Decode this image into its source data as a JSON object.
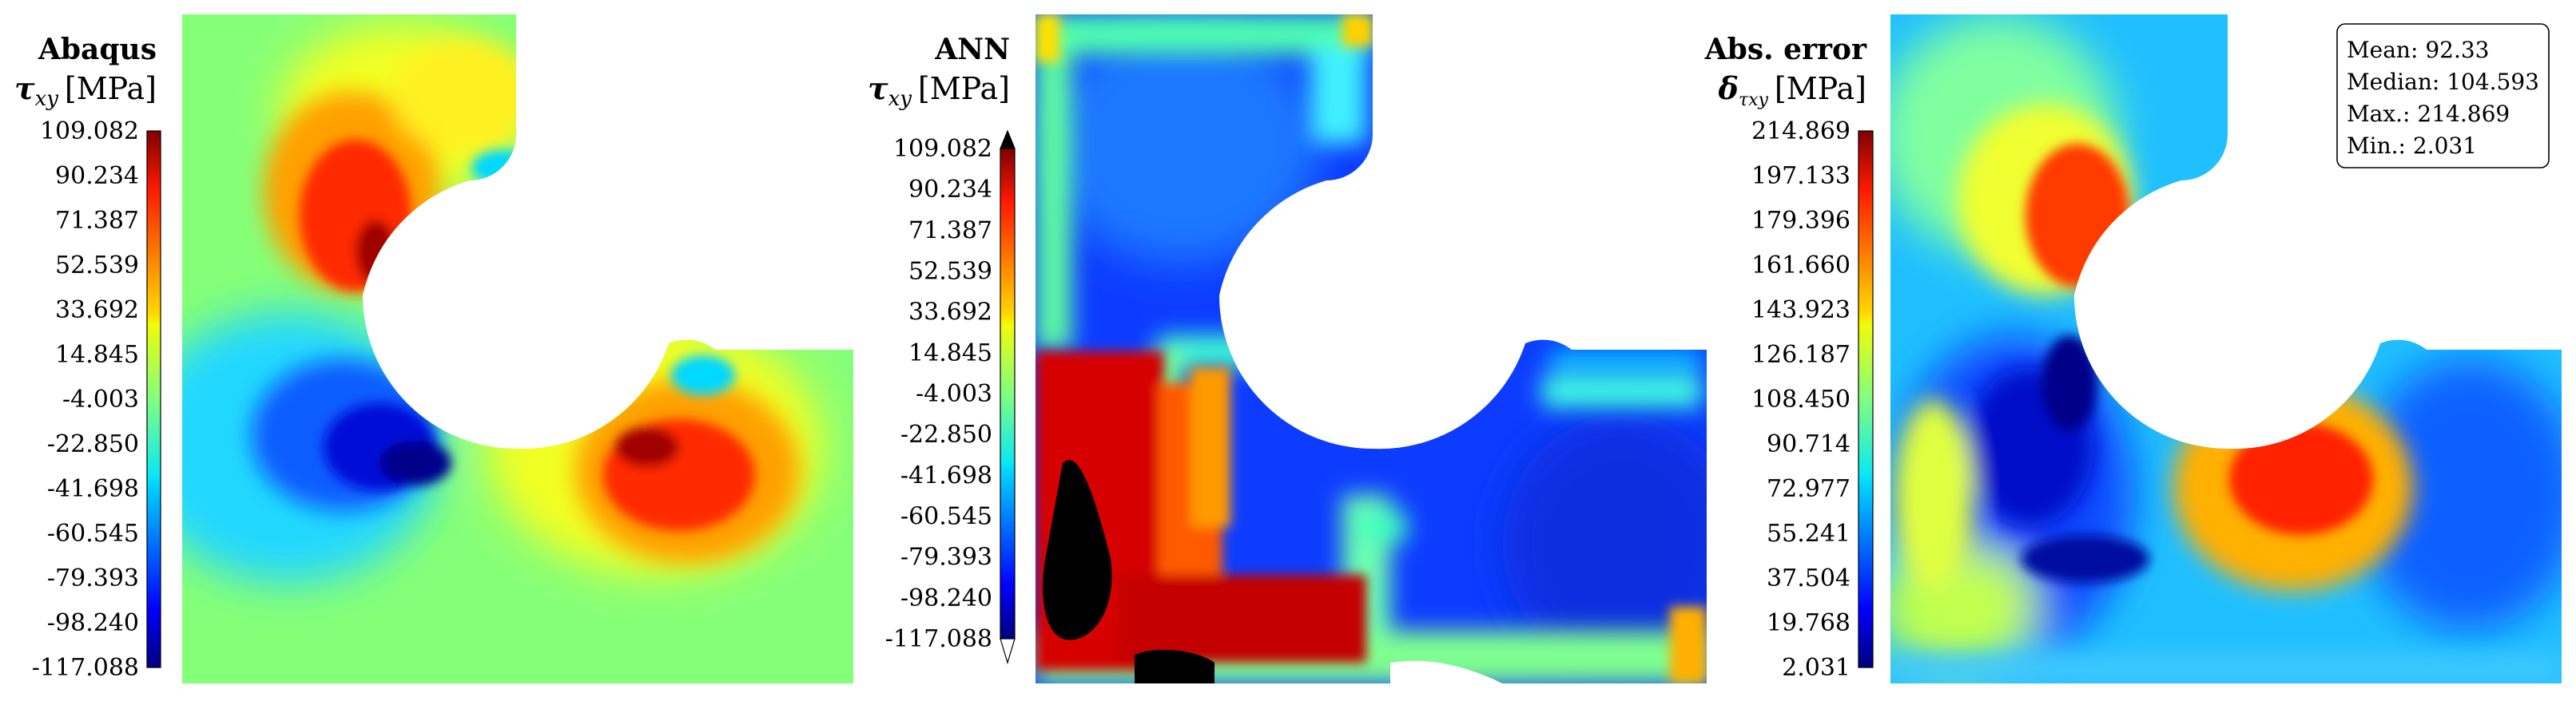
{
  "chart_data": [
    {
      "type": "heatmap",
      "title": "Abaqus",
      "quantity": "τxy [MPa]",
      "quantity_symbol": "τ",
      "quantity_subscript": "xy",
      "quantity_unit": "[MPa]",
      "colormap": "jet",
      "colorbar_ticks": [
        "109.082",
        "90.234",
        "71.387",
        "52.539",
        "33.692",
        "14.845",
        "-4.003",
        "-22.850",
        "-41.698",
        "-60.545",
        "-79.393",
        "-98.240",
        "-117.088"
      ],
      "clim": [
        -117.088,
        109.082
      ],
      "colorbar_extend": "none"
    },
    {
      "type": "heatmap",
      "title": "ANN",
      "quantity": "τxy [MPa]",
      "quantity_symbol": "τ",
      "quantity_subscript": "xy",
      "quantity_unit": "[MPa]",
      "colormap": "jet",
      "colorbar_ticks": [
        "109.082",
        "90.234",
        "71.387",
        "52.539",
        "33.692",
        "14.845",
        "-4.003",
        "-22.850",
        "-41.698",
        "-60.545",
        "-79.393",
        "-98.240",
        "-117.088"
      ],
      "clim": [
        -117.088,
        109.082
      ],
      "colorbar_extend": "both",
      "out_of_range_colors": {
        "over": "#ffffff",
        "under": "#000000"
      }
    },
    {
      "type": "heatmap",
      "title": "Abs. error",
      "quantity": "δτxy [MPa]",
      "quantity_symbol": "δ",
      "quantity_subscript": "τxy",
      "quantity_unit": "[MPa]",
      "colormap": "jet",
      "colorbar_ticks": [
        "214.869",
        "197.133",
        "179.396",
        "161.660",
        "143.923",
        "126.187",
        "108.450",
        "90.714",
        "72.977",
        "55.241",
        "37.504",
        "19.768",
        "2.031"
      ],
      "clim": [
        2.031,
        214.869
      ],
      "colorbar_extend": "none",
      "stats": [
        {
          "label": "Mean:",
          "value": "92.33"
        },
        {
          "label": "Median:",
          "value": "104.593"
        },
        {
          "label": "Max.:",
          "value": "214.869"
        },
        {
          "label": "Min.:",
          "value": "2.031"
        }
      ]
    }
  ]
}
